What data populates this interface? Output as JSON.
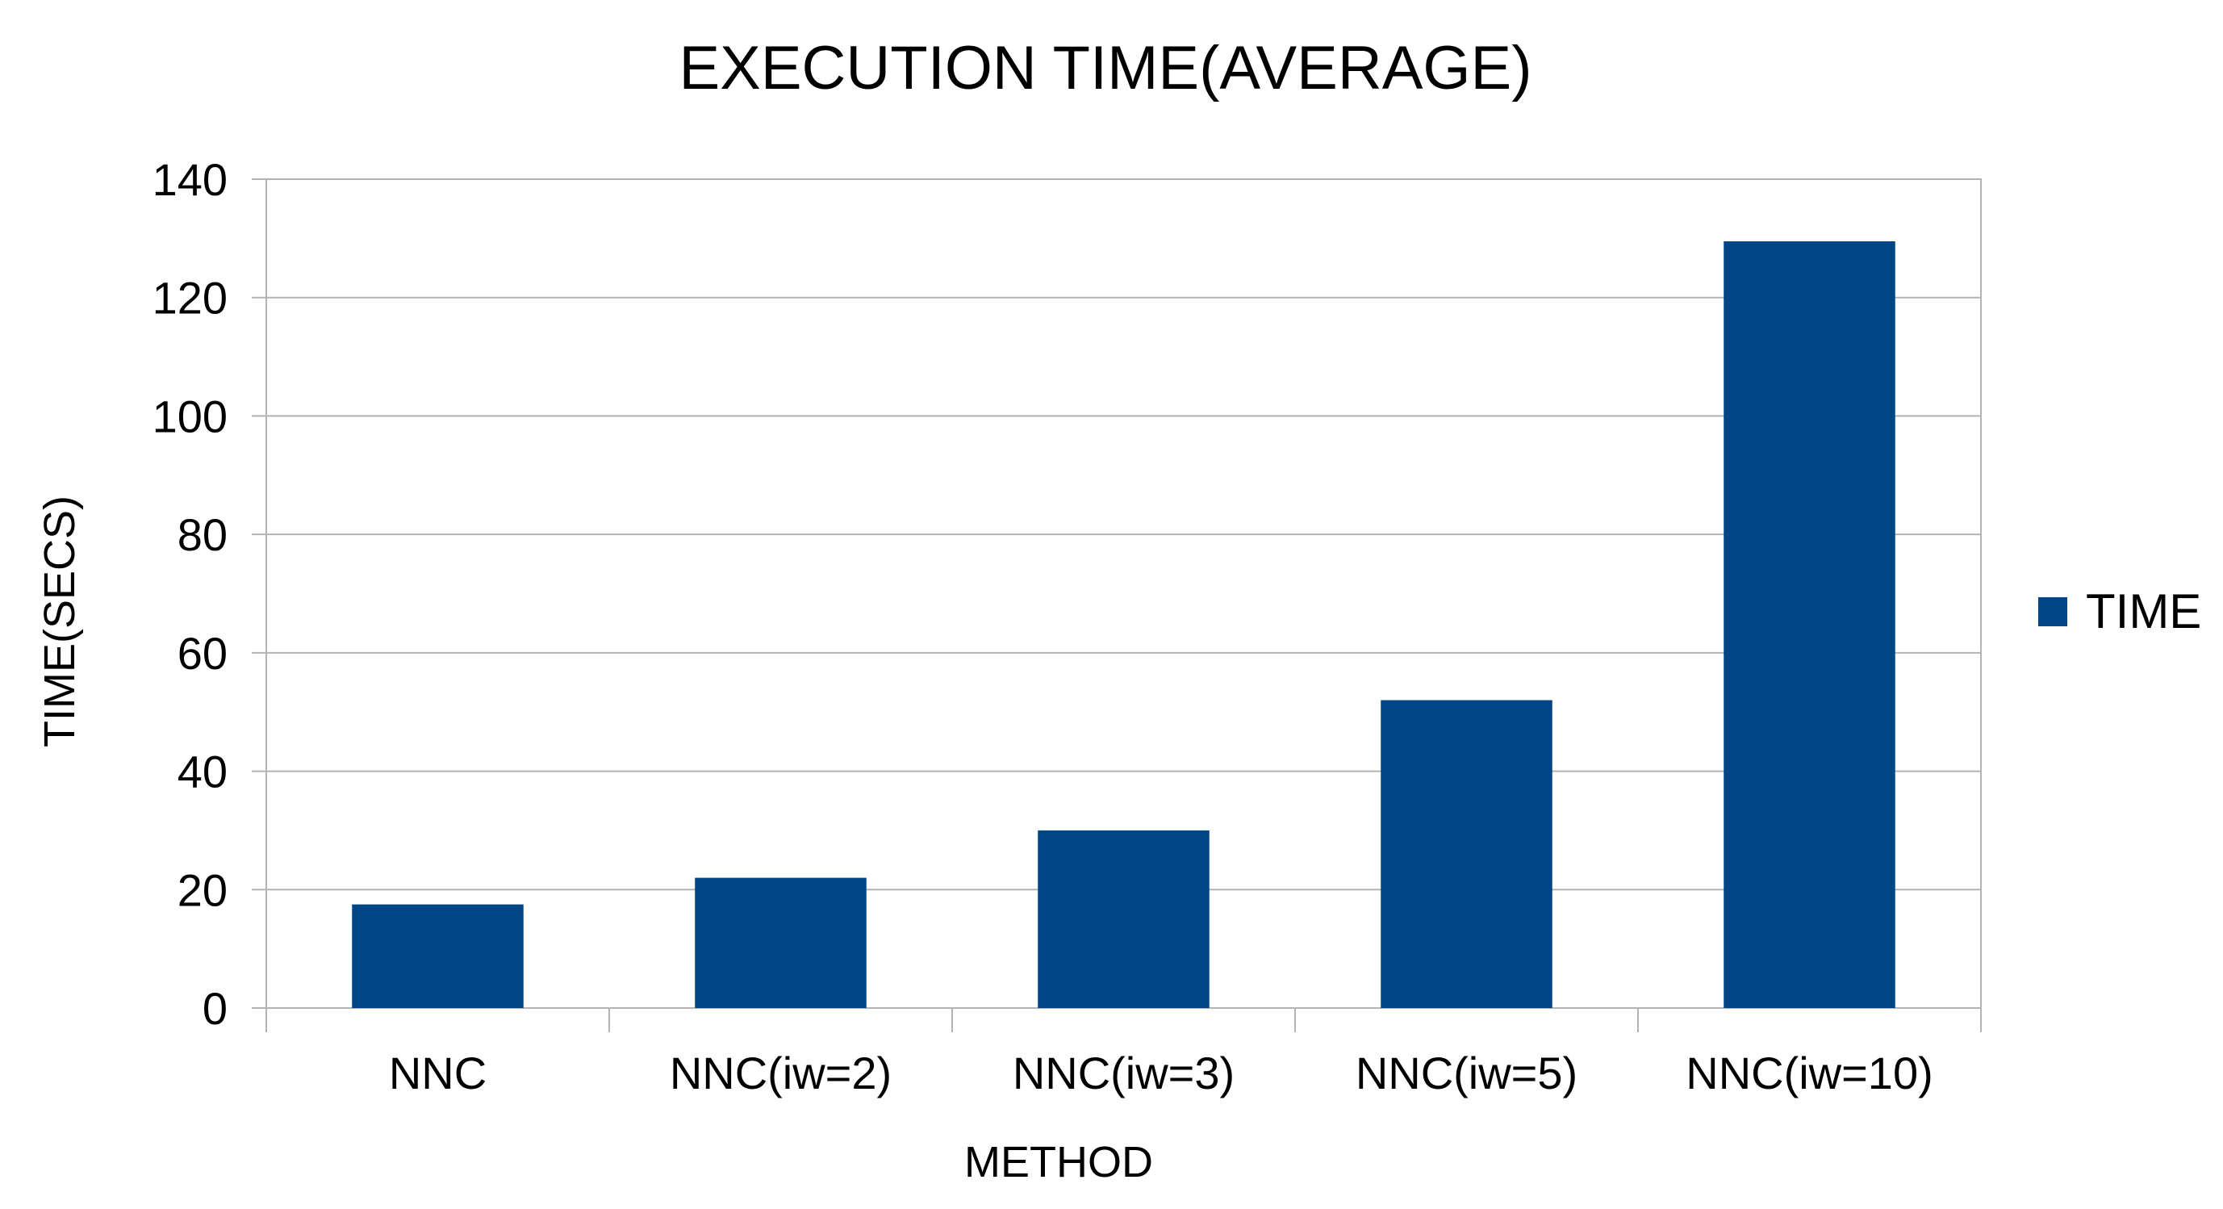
{
  "chart_data": {
    "type": "bar",
    "title": "EXECUTION TIME(AVERAGE)",
    "xlabel": "METHOD",
    "ylabel": "TIME(SECS)",
    "categories": [
      "NNC",
      "NNC(iw=2)",
      "NNC(iw=3)",
      "NNC(iw=5)",
      "NNC(iw=10)"
    ],
    "series": [
      {
        "name": "TIME",
        "values": [
          17.5,
          22,
          30,
          52,
          129.5
        ],
        "color": "#004586"
      }
    ],
    "ylim": [
      0,
      140
    ],
    "yticks": [
      "0",
      "20",
      "40",
      "60",
      "80",
      "100",
      "120",
      "140"
    ],
    "grid": true,
    "legend_position": "right"
  }
}
